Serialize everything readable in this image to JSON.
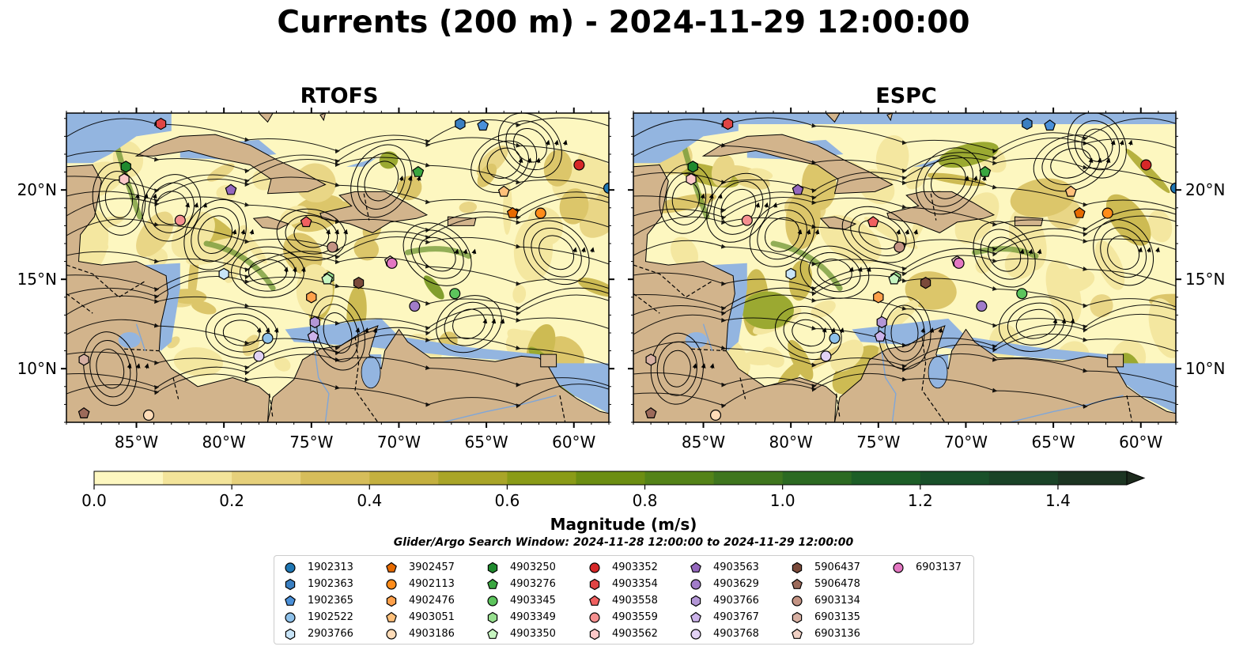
{
  "title": "Currents (200 m) - 2024-11-29 12:00:00",
  "panels": [
    {
      "title": "RTOFS"
    },
    {
      "title": "ESPC"
    }
  ],
  "map": {
    "lon_range": [
      -89,
      -58
    ],
    "lat_range": [
      7,
      24.3
    ],
    "lon_ticks": [
      -85,
      -80,
      -75,
      -70,
      -65,
      -60
    ],
    "lon_tick_labels": [
      "85°W",
      "80°W",
      "75°W",
      "70°W",
      "65°W",
      "60°W"
    ],
    "lat_ticks": [
      10,
      15,
      20
    ],
    "lat_tick_labels": [
      "10°N",
      "15°N",
      "20°N"
    ],
    "colors": {
      "land": "#d2b48c",
      "ocean_shelf": "#93b5e0",
      "coast": "#000000"
    }
  },
  "colorbar": {
    "label": "Magnitude (m/s)",
    "min": 0.0,
    "max": 1.5,
    "extend": "max",
    "ticks": [
      0.0,
      0.2,
      0.4,
      0.6,
      0.8,
      1.0,
      1.2,
      1.4
    ],
    "tick_labels": [
      "0.0",
      "0.2",
      "0.4",
      "0.6",
      "0.8",
      "1.0",
      "1.2",
      "1.4"
    ],
    "colors": [
      "#fdf7c0",
      "#f3e49a",
      "#e6d07b",
      "#d6bd5a",
      "#c4b03f",
      "#a9a528",
      "#8a9b17",
      "#6c8e12",
      "#548318",
      "#3f761e",
      "#2c6a22",
      "#1d5e27",
      "#19502a",
      "#1a4327",
      "#1c3522",
      "#1c2a1c"
    ]
  },
  "search_window": "Glider/Argo Search Window: 2024-11-28 12:00:00 to 2024-11-29 12:00:00",
  "legend": [
    {
      "id": "1902313",
      "marker": "circle",
      "color": "#1f77b4"
    },
    {
      "id": "1902363",
      "marker": "hexagon",
      "color": "#3a7fc1"
    },
    {
      "id": "1902365",
      "marker": "pentagon",
      "color": "#4a90d9"
    },
    {
      "id": "1902522",
      "marker": "circle",
      "color": "#8ec1ea"
    },
    {
      "id": "2903766",
      "marker": "hexagon",
      "color": "#c8e4f7"
    },
    {
      "id": "3902457",
      "marker": "pentagon",
      "color": "#e66a00"
    },
    {
      "id": "4902113",
      "marker": "circle",
      "color": "#ff8c1a"
    },
    {
      "id": "4902476",
      "marker": "hexagon",
      "color": "#ffa04a"
    },
    {
      "id": "4903051",
      "marker": "pentagon",
      "color": "#ffc07a"
    },
    {
      "id": "4903186",
      "marker": "circle",
      "color": "#ffdcb8"
    },
    {
      "id": "4903250",
      "marker": "hexagon",
      "color": "#1f8a2e"
    },
    {
      "id": "4903276",
      "marker": "pentagon",
      "color": "#3aa640"
    },
    {
      "id": "4903345",
      "marker": "circle",
      "color": "#5cc45c"
    },
    {
      "id": "4903349",
      "marker": "hexagon",
      "color": "#97df8f"
    },
    {
      "id": "4903350",
      "marker": "pentagon",
      "color": "#c7f5c0"
    },
    {
      "id": "4903352",
      "marker": "circle",
      "color": "#d62728"
    },
    {
      "id": "4903354",
      "marker": "hexagon",
      "color": "#e04545"
    },
    {
      "id": "4903558",
      "marker": "pentagon",
      "color": "#f06060"
    },
    {
      "id": "4903559",
      "marker": "circle",
      "color": "#f59090"
    },
    {
      "id": "4903562",
      "marker": "hexagon",
      "color": "#fcc8c8"
    },
    {
      "id": "4903563",
      "marker": "pentagon",
      "color": "#9467bd"
    },
    {
      "id": "4903629",
      "marker": "circle",
      "color": "#a17cc9"
    },
    {
      "id": "4903766",
      "marker": "hexagon",
      "color": "#b396d6"
    },
    {
      "id": "4903767",
      "marker": "pentagon",
      "color": "#ccb3ea"
    },
    {
      "id": "4903768",
      "marker": "circle",
      "color": "#e2d2f5"
    },
    {
      "id": "5906437",
      "marker": "hexagon",
      "color": "#7a4a3a"
    },
    {
      "id": "5906478",
      "marker": "pentagon",
      "color": "#9c6a5a"
    },
    {
      "id": "6903134",
      "marker": "circle",
      "color": "#c49484"
    },
    {
      "id": "6903135",
      "marker": "hexagon",
      "color": "#d7b0a3"
    },
    {
      "id": "6903136",
      "marker": "pentagon",
      "color": "#f0d0c4"
    },
    {
      "id": "6903137",
      "marker": "circle",
      "color": "#e377c2"
    }
  ],
  "platforms": [
    {
      "id": "1902313",
      "lon": -58.0,
      "lat": 20.1
    },
    {
      "id": "1902363",
      "lon": -66.5,
      "lat": 23.7
    },
    {
      "id": "1902365",
      "lon": -65.2,
      "lat": 23.6
    },
    {
      "id": "1902522",
      "lon": -77.5,
      "lat": 11.7
    },
    {
      "id": "2903766",
      "lon": -80.0,
      "lat": 15.3
    },
    {
      "id": "3902457",
      "lon": -63.5,
      "lat": 18.7
    },
    {
      "id": "4902113",
      "lon": -61.9,
      "lat": 18.7
    },
    {
      "id": "4902476",
      "lon": -75.0,
      "lat": 14.0
    },
    {
      "id": "4903051",
      "lon": -64.0,
      "lat": 19.9
    },
    {
      "id": "4903186",
      "lon": -84.3,
      "lat": 7.4
    },
    {
      "id": "4903250",
      "lon": -85.6,
      "lat": 21.3
    },
    {
      "id": "4903276",
      "lon": -68.9,
      "lat": 21.0
    },
    {
      "id": "4903345",
      "lon": -66.8,
      "lat": 14.2
    },
    {
      "id": "4903349",
      "lon": -74.0,
      "lat": 15.1
    },
    {
      "id": "4903350",
      "lon": -74.1,
      "lat": 15.0
    },
    {
      "id": "4903352",
      "lon": -59.7,
      "lat": 21.4
    },
    {
      "id": "4903354",
      "lon": -83.6,
      "lat": 23.7
    },
    {
      "id": "4903558",
      "lon": -75.3,
      "lat": 18.2
    },
    {
      "id": "4903559",
      "lon": -82.5,
      "lat": 18.3
    },
    {
      "id": "4903562",
      "lon": -85.7,
      "lat": 20.6
    },
    {
      "id": "4903563",
      "lon": -79.6,
      "lat": 20.0
    },
    {
      "id": "4903629",
      "lon": -69.1,
      "lat": 13.5
    },
    {
      "id": "4903766",
      "lon": -74.8,
      "lat": 12.6
    },
    {
      "id": "4903767",
      "lon": -74.9,
      "lat": 11.8
    },
    {
      "id": "4903768",
      "lon": -78.0,
      "lat": 10.7
    },
    {
      "id": "5906437",
      "lon": -72.3,
      "lat": 14.8
    },
    {
      "id": "5906478",
      "lon": -88.0,
      "lat": 7.5
    },
    {
      "id": "6903134",
      "lon": -73.8,
      "lat": 16.8
    },
    {
      "id": "6903135",
      "lon": -88.0,
      "lat": 10.5
    },
    {
      "id": "6903136",
      "lon": -70.5,
      "lat": 16.0
    },
    {
      "id": "6903137",
      "lon": -70.4,
      "lat": 15.9
    }
  ]
}
